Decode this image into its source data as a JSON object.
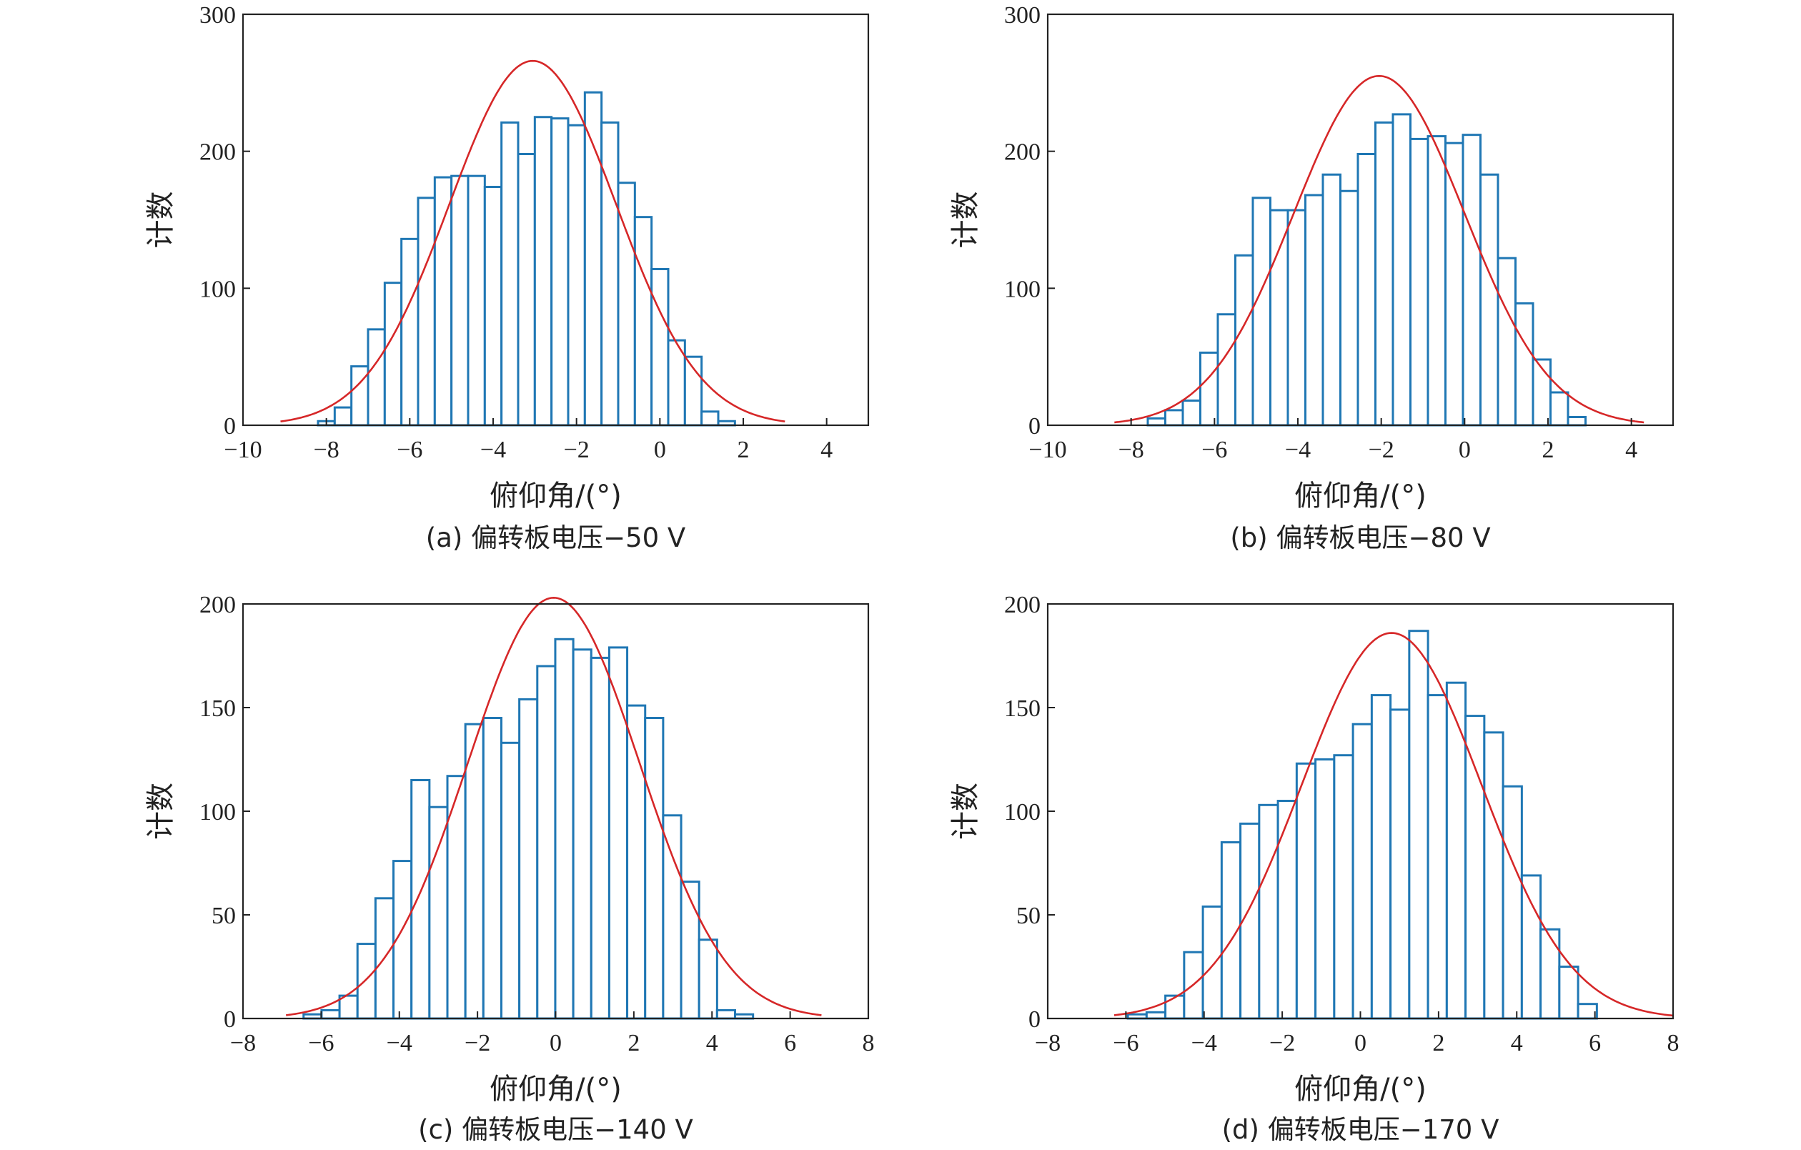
{
  "chart_data": [
    {
      "id": "a",
      "type": "bar",
      "caption": "(a) 偏转板电压−50 V",
      "xlabel": "俯仰角/(°)",
      "ylabel": "计数",
      "xlim": [
        -10,
        5
      ],
      "ylim": [
        0,
        300
      ],
      "xticks": [
        -10,
        -8,
        -6,
        -4,
        -2,
        0,
        2,
        4
      ],
      "xtick_labels": [
        "−10",
        "−8",
        "−6",
        "−4",
        "−2",
        "0",
        "2",
        "4"
      ],
      "yticks": [
        0,
        100,
        200,
        300
      ],
      "ytick_labels": [
        "0",
        "100",
        "200",
        "300"
      ],
      "bin_start": -8.2,
      "bin_width": 0.4,
      "counts": [
        3,
        13,
        43,
        70,
        104,
        136,
        166,
        181,
        182,
        182,
        174,
        221,
        198,
        225,
        224,
        219,
        243,
        221,
        177,
        152,
        114,
        62,
        50,
        10,
        3
      ],
      "fit": {
        "type": "gaussian",
        "mean": -3.05,
        "sigma": 2.0,
        "peak": 266,
        "range": [
          -9.1,
          3.0
        ]
      },
      "colors": {
        "bars": "#1f77b4",
        "fit": "#d62728"
      }
    },
    {
      "id": "b",
      "type": "bar",
      "caption": "(b) 偏转板电压−80 V",
      "xlabel": "俯仰角/(°)",
      "ylabel": "计数",
      "xlim": [
        -10,
        5
      ],
      "ylim": [
        0,
        300
      ],
      "xticks": [
        -10,
        -8,
        -6,
        -4,
        -2,
        0,
        2,
        4
      ],
      "xtick_labels": [
        "−10",
        "−8",
        "−6",
        "−4",
        "−2",
        "0",
        "2",
        "4"
      ],
      "yticks": [
        0,
        100,
        200,
        300
      ],
      "ytick_labels": [
        "0",
        "100",
        "200",
        "300"
      ],
      "bin_start": -7.6,
      "bin_width": 0.42,
      "counts": [
        5,
        11,
        18,
        53,
        81,
        124,
        166,
        157,
        157,
        168,
        183,
        171,
        198,
        221,
        227,
        209,
        211,
        206,
        212,
        183,
        122,
        89,
        48,
        24,
        6
      ],
      "fit": {
        "type": "gaussian",
        "mean": -2.05,
        "sigma": 2.05,
        "peak": 255,
        "range": [
          -8.4,
          4.3
        ]
      },
      "colors": {
        "bars": "#1f77b4",
        "fit": "#d62728"
      }
    },
    {
      "id": "c",
      "type": "bar",
      "caption": "(c) 偏转板电压−140 V",
      "xlabel": "俯仰角/(°)",
      "ylabel": "计数",
      "xlim": [
        -8,
        8
      ],
      "ylim": [
        0,
        200
      ],
      "xticks": [
        -8,
        -6,
        -4,
        -2,
        0,
        2,
        4,
        6,
        8
      ],
      "xtick_labels": [
        "−8",
        "−6",
        "−4",
        "−2",
        "0",
        "2",
        "4",
        "6",
        "8"
      ],
      "yticks": [
        0,
        50,
        100,
        150,
        200
      ],
      "ytick_labels": [
        "0",
        "50",
        "100",
        "150",
        "200"
      ],
      "bin_start": -6.45,
      "bin_width": 0.46,
      "counts": [
        2,
        4,
        11,
        36,
        58,
        76,
        115,
        102,
        117,
        142,
        145,
        133,
        154,
        170,
        183,
        178,
        174,
        179,
        151,
        145,
        98,
        66,
        38,
        4,
        2
      ],
      "fit": {
        "type": "gaussian",
        "mean": -0.05,
        "sigma": 2.2,
        "peak": 203,
        "range": [
          -6.9,
          6.8
        ]
      },
      "colors": {
        "bars": "#1f77b4",
        "fit": "#d62728"
      }
    },
    {
      "id": "d",
      "type": "bar",
      "caption": "(d) 偏转板电压−170 V",
      "xlabel": "俯仰角/(°)",
      "ylabel": "计数",
      "xlim": [
        -8,
        8
      ],
      "ylim": [
        0,
        200
      ],
      "xticks": [
        -8,
        -6,
        -4,
        -2,
        0,
        2,
        4,
        6,
        8
      ],
      "xtick_labels": [
        "−8",
        "−6",
        "−4",
        "−2",
        "0",
        "2",
        "4",
        "6",
        "8"
      ],
      "yticks": [
        0,
        50,
        100,
        150,
        200
      ],
      "ytick_labels": [
        "0",
        "50",
        "100",
        "150",
        "200"
      ],
      "bin_start": -5.95,
      "bin_width": 0.48,
      "counts": [
        2,
        3,
        11,
        32,
        54,
        85,
        94,
        103,
        105,
        123,
        125,
        127,
        142,
        156,
        149,
        187,
        156,
        162,
        146,
        138,
        112,
        69,
        43,
        25,
        7
      ],
      "fit": {
        "type": "gaussian",
        "mean": 0.8,
        "sigma": 2.3,
        "peak": 186,
        "range": [
          -6.3,
          8.0
        ]
      },
      "colors": {
        "bars": "#1f77b4",
        "fit": "#d62728"
      }
    }
  ]
}
